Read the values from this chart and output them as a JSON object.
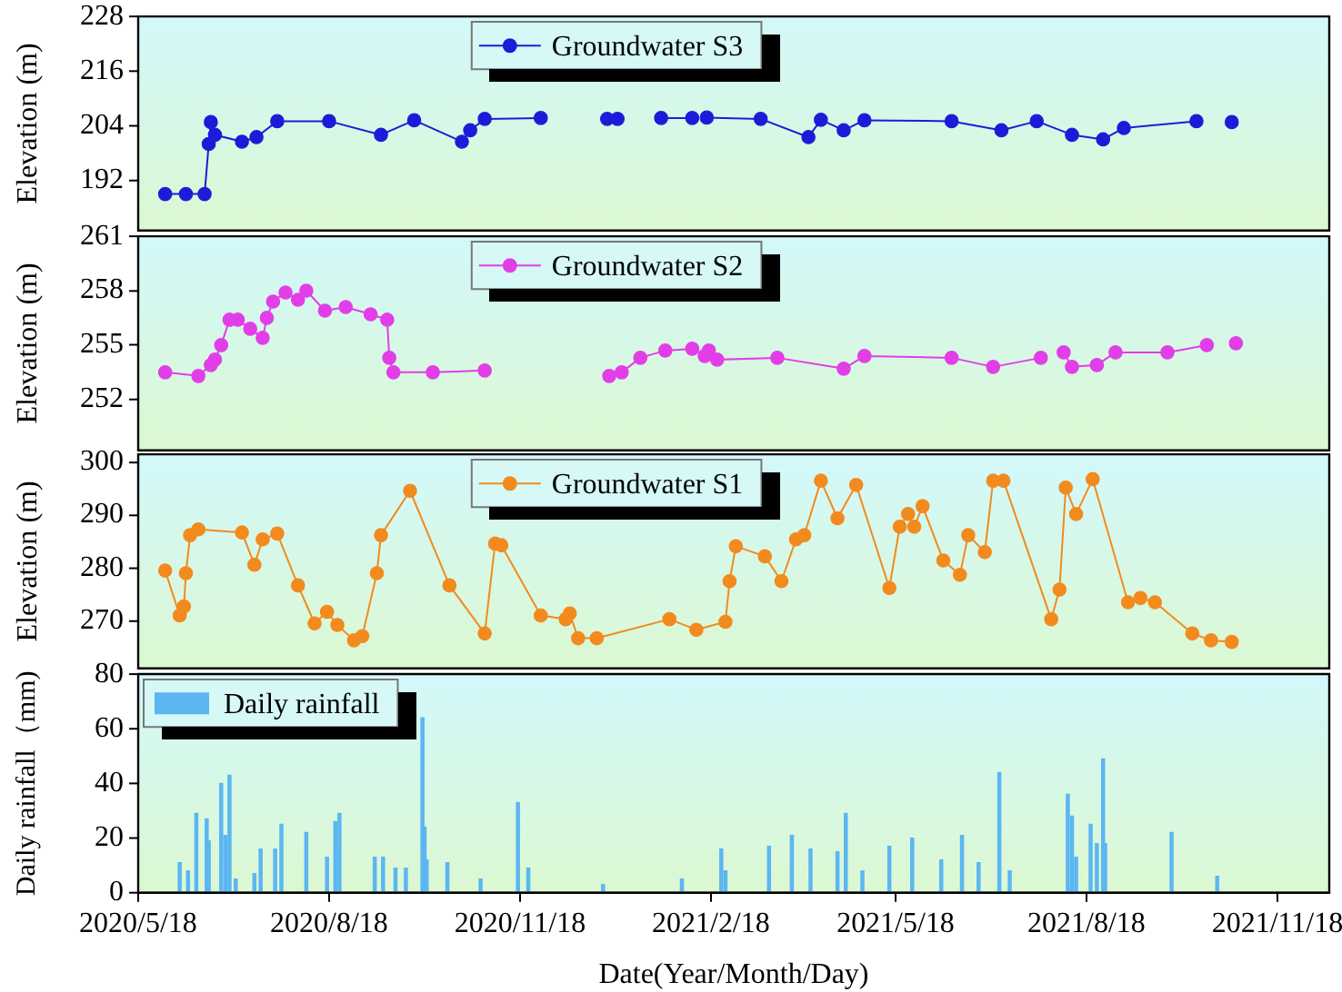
{
  "chart_data": [
    {
      "type": "line",
      "ylabel": "Elevation (m)",
      "xlim": [
        "2020-05-18",
        "2021-12-13"
      ],
      "ylim": [
        181,
        228
      ],
      "yticks": [
        192,
        204,
        216,
        228
      ],
      "tick_labels": "y",
      "legend": "top",
      "marker": "circle",
      "x": [
        "2020-05-31",
        "2020-06-10",
        "2020-06-19",
        "2020-06-21",
        "2020-06-22",
        "2020-06-24",
        "2020-07-07",
        "2020-07-14",
        "2020-07-24",
        "2020-08-18",
        "2020-09-12",
        "2020-09-28",
        "2020-10-21",
        "2020-10-25",
        "2020-11-01",
        "2020-11-28",
        "2020-12-14",
        "2020-12-30",
        "2021-01-04",
        "2021-01-14",
        "2021-01-25",
        "2021-02-09",
        "2021-02-12",
        "2021-02-16",
        "2021-03-14",
        "2021-04-06",
        "2021-04-12",
        "2021-04-23",
        "2021-05-03",
        "2021-06-14",
        "2021-07-08",
        "2021-07-25",
        "2021-08-11",
        "2021-08-26",
        "2021-09-05",
        "2021-10-10",
        "2021-10-18",
        "2021-10-27"
      ],
      "series": [
        {
          "name": "Groundwater S3",
          "color": "#1c1cd8",
          "values": [
            189,
            189,
            189,
            200,
            204.8,
            202,
            200.5,
            201.5,
            205,
            205,
            202,
            205.2,
            200.5,
            203,
            205.5,
            205.7,
            null,
            205.5,
            205.5,
            null,
            205.7,
            205.7,
            null,
            205.8,
            205.5,
            201.5,
            205.3,
            203,
            205.2,
            205,
            203,
            205,
            202,
            201,
            203.5,
            205,
            null,
            204.8
          ]
        }
      ]
    },
    {
      "type": "line",
      "ylabel": "Elevation (m)",
      "xlim": [
        "2020-05-18",
        "2021-12-13"
      ],
      "ylim": [
        249.2,
        261
      ],
      "yticks": [
        252,
        255,
        258,
        261
      ],
      "tick_labels": "y",
      "legend": "top",
      "marker": "circle",
      "x": [
        "2020-05-31",
        "2020-06-16",
        "2020-06-22",
        "2020-06-24",
        "2020-06-27",
        "2020-07-01",
        "2020-07-05",
        "2020-07-11",
        "2020-07-17",
        "2020-07-19",
        "2020-07-22",
        "2020-07-28",
        "2020-08-03",
        "2020-08-07",
        "2020-08-16",
        "2020-08-26",
        "2020-09-07",
        "2020-09-15",
        "2020-09-16",
        "2020-09-18",
        "2020-10-07",
        "2020-11-01",
        "2020-12-01",
        "2020-12-31",
        "2021-01-06",
        "2021-01-15",
        "2021-01-27",
        "2021-02-09",
        "2021-02-15",
        "2021-02-17",
        "2021-02-21",
        "2021-03-22",
        "2021-04-23",
        "2021-05-03",
        "2021-06-14",
        "2021-07-04",
        "2021-07-27",
        "2021-08-02",
        "2021-08-07",
        "2021-08-11",
        "2021-08-23",
        "2021-09-01",
        "2021-09-26",
        "2021-10-15",
        "2021-10-22",
        "2021-10-29"
      ],
      "series": [
        {
          "name": "Groundwater S2",
          "color": "#e23ee8",
          "values": [
            253.5,
            253.3,
            253.9,
            254.2,
            255,
            256.4,
            256.4,
            255.9,
            255.4,
            256.5,
            257.4,
            257.9,
            257.5,
            258,
            256.9,
            257.1,
            256.7,
            256.4,
            254.3,
            253.5,
            253.5,
            253.6,
            null,
            253.3,
            253.5,
            254.3,
            254.7,
            254.8,
            254.4,
            254.7,
            254.2,
            254.3,
            253.7,
            254.4,
            254.3,
            253.8,
            254.3,
            null,
            254.6,
            253.8,
            253.9,
            254.6,
            254.6,
            255,
            null,
            255.1
          ]
        }
      ]
    },
    {
      "type": "line",
      "ylabel": "Elevation (m)",
      "xlim": [
        "2020-05-18",
        "2021-12-13"
      ],
      "ylim": [
        261,
        301.5
      ],
      "yticks": [
        270,
        280,
        290,
        300
      ],
      "tick_labels": "y",
      "legend": "top",
      "marker": "circle",
      "x": [
        "2020-05-31",
        "2020-06-07",
        "2020-06-09",
        "2020-06-10",
        "2020-06-12",
        "2020-06-16",
        "2020-07-07",
        "2020-07-13",
        "2020-07-17",
        "2020-07-24",
        "2020-08-03",
        "2020-08-11",
        "2020-08-17",
        "2020-08-22",
        "2020-08-30",
        "2020-09-03",
        "2020-09-10",
        "2020-09-12",
        "2020-09-26",
        "2020-10-15",
        "2020-11-01",
        "2020-11-06",
        "2020-11-09",
        "2020-11-28",
        "2020-12-10",
        "2020-12-12",
        "2020-12-16",
        "2020-12-25",
        "2021-01-29",
        "2021-02-11",
        "2021-02-25",
        "2021-02-27",
        "2021-03-02",
        "2021-03-16",
        "2021-03-24",
        "2021-03-31",
        "2021-04-04",
        "2021-04-12",
        "2021-04-20",
        "2021-04-29",
        "2021-05-15",
        "2021-05-20",
        "2021-05-24",
        "2021-05-27",
        "2021-05-31",
        "2021-06-10",
        "2021-06-18",
        "2021-06-22",
        "2021-06-30",
        "2021-07-04",
        "2021-07-09",
        "2021-08-01",
        "2021-08-05",
        "2021-08-08",
        "2021-08-13",
        "2021-08-21",
        "2021-09-07",
        "2021-09-13",
        "2021-09-20",
        "2021-10-08",
        "2021-10-17",
        "2021-10-27"
      ],
      "series": [
        {
          "name": "Groundwater S1",
          "color": "#f28a1e",
          "values": [
            279.5,
            271,
            272.7,
            279,
            286.2,
            287.3,
            286.7,
            280.6,
            285.4,
            286.5,
            276.7,
            269.5,
            271.7,
            269.2,
            266.3,
            267.1,
            279,
            286.2,
            294.6,
            276.7,
            267.6,
            284.6,
            284.3,
            271,
            270.3,
            271.4,
            266.7,
            266.7,
            270.3,
            268.3,
            269.8,
            277.5,
            284.1,
            282.2,
            277.5,
            285.4,
            286.2,
            296.5,
            289.4,
            295.7,
            276.2,
            287.8,
            290.2,
            287.8,
            291.7,
            281.4,
            278.7,
            286.2,
            283,
            296.5,
            296.5,
            270.3,
            275.9,
            295.2,
            290.2,
            296.8,
            273.5,
            274.3,
            273.5,
            267.6,
            266.3,
            266
          ]
        }
      ]
    },
    {
      "type": "bar",
      "xlabel": "Date(Year/Month/Day)",
      "ylabel": "Daily rainfall（mm)",
      "xlim": [
        "2020-05-18",
        "2021-12-13"
      ],
      "xticks": [
        {
          "value": "2020-05-18",
          "label": "2020/5/18"
        },
        {
          "value": "2020-08-18",
          "label": "2020/8/18"
        },
        {
          "value": "2020-11-18",
          "label": "2020/11/18"
        },
        {
          "value": "2021-02-18",
          "label": "2021/2/18"
        },
        {
          "value": "2021-05-18",
          "label": "2021/5/18"
        },
        {
          "value": "2021-08-18",
          "label": "2021/8/18"
        },
        {
          "value": "2021-11-18",
          "label": "2021/11/18"
        }
      ],
      "ylim": [
        0,
        80
      ],
      "yticks": [
        0,
        20,
        40,
        60,
        80
      ],
      "legend": "top left",
      "x": [
        "2020-06-07",
        "2020-06-11",
        "2020-06-15",
        "2020-06-20",
        "2020-06-21",
        "2020-06-27",
        "2020-06-29",
        "2020-07-01",
        "2020-07-04",
        "2020-07-13",
        "2020-07-16",
        "2020-07-23",
        "2020-07-26",
        "2020-08-07",
        "2020-08-17",
        "2020-08-21",
        "2020-08-23",
        "2020-09-09",
        "2020-09-13",
        "2020-09-19",
        "2020-09-24",
        "2020-10-02",
        "2020-10-03",
        "2020-10-04",
        "2020-10-14",
        "2020-10-30",
        "2020-11-17",
        "2020-11-22",
        "2020-12-28",
        "2021-02-04",
        "2021-02-23",
        "2021-02-25",
        "2021-03-18",
        "2021-03-29",
        "2021-04-07",
        "2021-04-20",
        "2021-04-24",
        "2021-05-02",
        "2021-05-15",
        "2021-05-26",
        "2021-06-09",
        "2021-06-19",
        "2021-06-27",
        "2021-07-07",
        "2021-07-12",
        "2021-08-09",
        "2021-08-11",
        "2021-08-13",
        "2021-08-20",
        "2021-08-23",
        "2021-08-26",
        "2021-08-27",
        "2021-09-28",
        "2021-10-20"
      ],
      "series": [
        {
          "name": "Daily rainfall",
          "color": "#5cb6f2",
          "values": [
            11,
            8,
            29,
            27,
            19,
            40,
            21,
            43,
            5,
            7,
            16,
            16,
            25,
            22,
            13,
            26,
            29,
            13,
            13,
            9,
            9,
            64,
            24,
            12,
            11,
            5,
            33,
            9,
            3,
            5,
            16,
            8,
            17,
            21,
            16,
            15,
            29,
            8,
            17,
            20,
            12,
            21,
            11,
            44,
            8,
            36,
            28,
            13,
            25,
            18,
            49,
            18,
            22,
            6
          ]
        }
      ]
    }
  ]
}
